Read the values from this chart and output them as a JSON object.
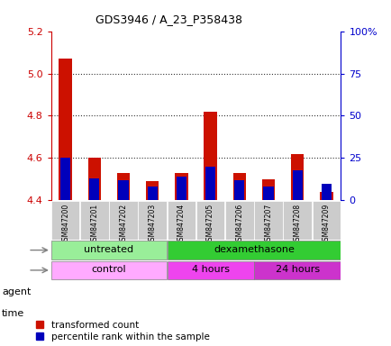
{
  "title": "GDS3946 / A_23_P358438",
  "samples": [
    "GSM847200",
    "GSM847201",
    "GSM847202",
    "GSM847203",
    "GSM847204",
    "GSM847205",
    "GSM847206",
    "GSM847207",
    "GSM847208",
    "GSM847209"
  ],
  "transformed_count": [
    5.07,
    4.6,
    4.53,
    4.49,
    4.53,
    4.82,
    4.53,
    4.5,
    4.62,
    4.44
  ],
  "percentile_rank": [
    25,
    13,
    12,
    8,
    14,
    20,
    12,
    8,
    18,
    10
  ],
  "ylim_left": [
    4.4,
    5.2
  ],
  "ylim_right": [
    0,
    100
  ],
  "yticks_left": [
    4.4,
    4.6,
    4.8,
    5.0,
    5.2
  ],
  "yticks_right": [
    0,
    25,
    50,
    75,
    100
  ],
  "ytick_labels_right": [
    "0",
    "25",
    "50",
    "75",
    "100%"
  ],
  "bar_color_red": "#cc1100",
  "bar_color_blue": "#0000bb",
  "baseline": 4.4,
  "bar_width": 0.45,
  "blue_bar_width": 0.35,
  "agent_untreated_color": "#99ee99",
  "agent_dexa_color": "#33cc33",
  "time_control_color": "#ffaaff",
  "time_4h_color": "#ee44ee",
  "time_24h_color": "#cc33cc",
  "legend_red": "transformed count",
  "legend_blue": "percentile rank within the sample",
  "tick_color_left": "#cc0000",
  "tick_color_right": "#0000cc",
  "sample_label_bg": "#cccccc",
  "grid_dotted_color": "#333333"
}
